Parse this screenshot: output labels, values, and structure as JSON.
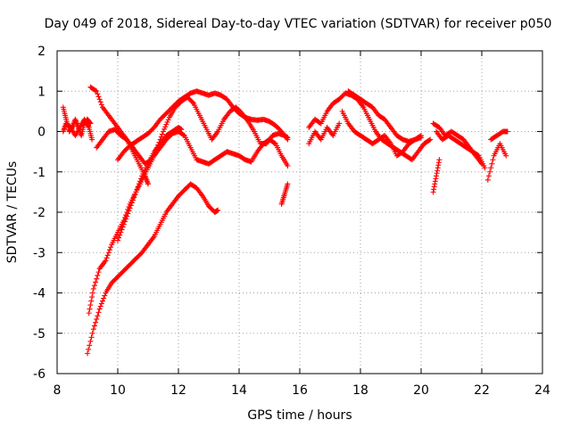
{
  "chart_data": {
    "type": "scatter",
    "title": "Day 049 of 2018, Sidereal Day-to-day VTEC variation (SDTVAR) for receiver p050",
    "xlabel": "GPS time / hours",
    "ylabel": "SDTVAR / TECUs",
    "xlim": [
      8,
      24
    ],
    "ylim": [
      -6,
      2
    ],
    "xticks": [
      "8",
      "10",
      "12",
      "14",
      "16",
      "18",
      "20",
      "22",
      "24"
    ],
    "yticks": [
      "2",
      "1",
      "0",
      "-1",
      "-2",
      "-3",
      "-4",
      "-5",
      "-6"
    ],
    "grid": true,
    "marker": "+",
    "color": "#ff0000",
    "series": [
      {
        "name": "s1",
        "x": [
          8.2,
          8.3,
          8.4,
          8.5,
          8.6,
          8.7,
          8.8,
          8.9,
          9.0,
          9.1
        ],
        "y": [
          0.6,
          0.3,
          0.0,
          0.1,
          0.3,
          0.1,
          -0.1,
          0.2,
          0.3,
          0.2
        ]
      },
      {
        "name": "s2",
        "x": [
          8.2,
          8.3,
          8.45,
          8.6,
          8.75,
          8.9,
          9.05,
          9.15
        ],
        "y": [
          0.0,
          0.2,
          0.1,
          -0.1,
          0.1,
          0.3,
          0.1,
          -0.2
        ]
      },
      {
        "name": "s3",
        "x": [
          9.1,
          9.3,
          9.5,
          9.7,
          9.9,
          10.1,
          10.3,
          10.5,
          10.7,
          10.9,
          11.0
        ],
        "y": [
          1.1,
          1.0,
          0.6,
          0.4,
          0.2,
          0.0,
          -0.2,
          -0.5,
          -0.8,
          -1.1,
          -1.3
        ]
      },
      {
        "name": "s4",
        "x": [
          9.0,
          9.2,
          9.4,
          9.6,
          9.8,
          10.0,
          10.2,
          10.4,
          10.6,
          10.8,
          11.0,
          11.2,
          11.4,
          11.6,
          11.8,
          12.0,
          12.2,
          12.4,
          12.6,
          12.8,
          13.0,
          13.2,
          13.3
        ],
        "y": [
          -5.5,
          -4.9,
          -4.4,
          -4.0,
          -3.75,
          -3.6,
          -3.45,
          -3.3,
          -3.15,
          -3.0,
          -2.8,
          -2.6,
          -2.3,
          -2.0,
          -1.8,
          -1.6,
          -1.45,
          -1.3,
          -1.4,
          -1.6,
          -1.85,
          -2.0,
          -1.95
        ]
      },
      {
        "name": "s5",
        "x": [
          9.05,
          9.2,
          9.4,
          9.6,
          9.8,
          10.0,
          10.2,
          10.4,
          10.6,
          10.8,
          11.0,
          11.2,
          11.4,
          11.6,
          11.8,
          12.0,
          12.2,
          12.4,
          12.6,
          12.8,
          13.0,
          13.2,
          13.4,
          13.6,
          13.8,
          14.0,
          14.2,
          14.4,
          14.6,
          14.8,
          15.0,
          15.2,
          15.4,
          15.6
        ],
        "y": [
          -4.5,
          -3.9,
          -3.4,
          -3.2,
          -2.8,
          -2.5,
          -2.2,
          -1.8,
          -1.5,
          -1.2,
          -0.9,
          -0.6,
          -0.4,
          -0.2,
          -0.05,
          0.0,
          -0.1,
          -0.4,
          -0.7,
          -0.75,
          -0.8,
          -0.7,
          -0.6,
          -0.5,
          -0.55,
          -0.6,
          -0.7,
          -0.75,
          -0.5,
          -0.3,
          -0.2,
          -0.3,
          -0.6,
          -0.85
        ]
      },
      {
        "name": "s6",
        "x": [
          10.0,
          10.2,
          10.4,
          10.6,
          10.8,
          11.0,
          11.2,
          11.4,
          11.6,
          11.8,
          12.0,
          12.1
        ],
        "y": [
          -2.7,
          -2.3,
          -1.9,
          -1.5,
          -1.1,
          -0.8,
          -0.5,
          -0.3,
          -0.1,
          0.0,
          0.1,
          0.05
        ]
      },
      {
        "name": "s7",
        "x": [
          10.0,
          10.2,
          10.4,
          10.6,
          10.8,
          11.0,
          11.2,
          11.4,
          11.6,
          11.8,
          12.0,
          12.2,
          12.4,
          12.6,
          12.8,
          13.0,
          13.2,
          13.4,
          13.6,
          13.8,
          14.0,
          14.2,
          14.4,
          14.6,
          14.8,
          15.0,
          15.2,
          15.4,
          15.6
        ],
        "y": [
          -0.7,
          -0.5,
          -0.35,
          -0.25,
          -0.15,
          -0.05,
          0.1,
          0.3,
          0.45,
          0.6,
          0.75,
          0.85,
          0.95,
          1.0,
          0.95,
          0.9,
          0.95,
          0.9,
          0.8,
          0.6,
          0.45,
          0.35,
          0.3,
          0.28,
          0.3,
          0.25,
          0.15,
          0.0,
          -0.2
        ]
      },
      {
        "name": "s8",
        "x": [
          9.3,
          9.5,
          9.7,
          9.9,
          10.1,
          10.3,
          10.5,
          10.7,
          10.9,
          11.1,
          11.3,
          11.5,
          11.7,
          11.9,
          12.1,
          12.3,
          12.5,
          12.7,
          12.9,
          13.1,
          13.3,
          13.5,
          13.7,
          13.9,
          14.1,
          14.3,
          14.5,
          14.7,
          14.9,
          15.1,
          15.3,
          15.5,
          15.6
        ],
        "y": [
          -0.4,
          -0.2,
          0.0,
          0.05,
          -0.1,
          -0.2,
          -0.4,
          -0.6,
          -0.8,
          -0.7,
          -0.4,
          0.0,
          0.35,
          0.6,
          0.75,
          0.85,
          0.7,
          0.4,
          0.1,
          -0.2,
          0.0,
          0.3,
          0.5,
          0.6,
          0.45,
          0.25,
          0.0,
          -0.3,
          -0.3,
          -0.1,
          -0.05,
          -0.1,
          -0.15
        ]
      },
      {
        "name": "s9",
        "x": [
          15.4,
          15.5,
          15.6
        ],
        "y": [
          -1.8,
          -1.55,
          -1.3
        ]
      },
      {
        "name": "s10",
        "x": [
          16.3,
          16.5,
          16.7,
          16.9,
          17.1,
          17.3,
          17.5,
          17.7,
          17.9,
          18.1,
          18.3,
          18.5,
          18.7,
          18.9,
          19.1,
          19.3,
          19.5,
          19.7,
          19.9,
          20.1,
          20.3
        ],
        "y": [
          0.1,
          0.3,
          0.2,
          0.5,
          0.7,
          0.8,
          0.95,
          0.9,
          0.8,
          0.6,
          0.3,
          0.0,
          -0.2,
          -0.3,
          -0.4,
          -0.5,
          -0.6,
          -0.7,
          -0.5,
          -0.3,
          -0.2
        ]
      },
      {
        "name": "s11",
        "x": [
          16.3,
          16.5,
          16.7,
          16.9,
          17.1,
          17.3
        ],
        "y": [
          -0.3,
          0.0,
          -0.2,
          0.1,
          -0.1,
          0.2
        ]
      },
      {
        "name": "s12",
        "x": [
          17.4,
          17.6,
          17.8,
          18.0,
          18.2,
          18.4,
          18.6,
          18.8,
          19.0,
          19.2,
          19.4,
          19.6,
          19.8,
          20.0
        ],
        "y": [
          0.5,
          0.2,
          0.0,
          -0.1,
          -0.2,
          -0.3,
          -0.2,
          -0.1,
          -0.3,
          -0.6,
          -0.5,
          -0.3,
          -0.2,
          -0.1
        ]
      },
      {
        "name": "s13",
        "x": [
          17.6,
          17.8,
          18.0,
          18.2,
          18.4,
          18.6,
          18.8,
          19.0,
          19.2,
          19.4,
          19.6,
          19.8,
          20.0
        ],
        "y": [
          1.0,
          0.9,
          0.8,
          0.7,
          0.6,
          0.4,
          0.3,
          0.1,
          -0.1,
          -0.2,
          -0.25,
          -0.2,
          -0.15
        ]
      },
      {
        "name": "s14",
        "x": [
          20.4,
          20.5,
          20.6
        ],
        "y": [
          -1.5,
          -1.1,
          -0.7
        ]
      },
      {
        "name": "s15",
        "x": [
          20.4,
          20.6,
          20.8,
          21.0,
          21.2,
          21.4,
          21.6,
          21.8,
          22.0
        ],
        "y": [
          0.2,
          0.1,
          -0.1,
          0.0,
          -0.1,
          -0.2,
          -0.4,
          -0.6,
          -0.8
        ]
      },
      {
        "name": "s16",
        "x": [
          20.5,
          20.7,
          20.9,
          21.1,
          21.3,
          21.5,
          21.7,
          21.9,
          22.1
        ],
        "y": [
          0.0,
          -0.2,
          -0.1,
          -0.2,
          -0.3,
          -0.4,
          -0.5,
          -0.6,
          -0.9
        ]
      },
      {
        "name": "s17",
        "x": [
          22.2,
          22.4,
          22.6,
          22.8
        ],
        "y": [
          -1.2,
          -0.6,
          -0.3,
          -0.6
        ]
      },
      {
        "name": "s18",
        "x": [
          22.3,
          22.5,
          22.7,
          22.85
        ],
        "y": [
          -0.2,
          -0.1,
          0.0,
          0.0
        ]
      }
    ]
  }
}
